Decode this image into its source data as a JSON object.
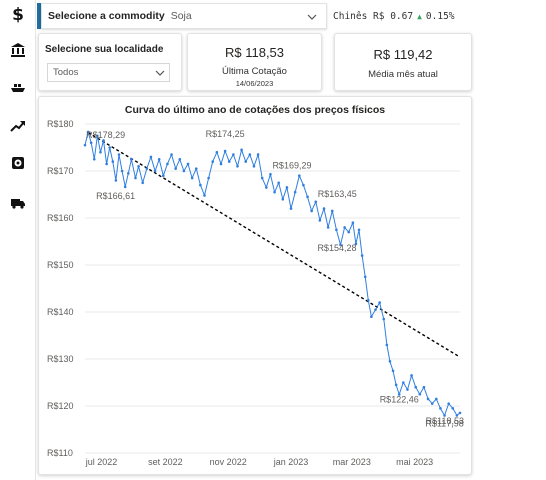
{
  "sidebar": {
    "items": [
      {
        "name": "dollar-icon",
        "label": "$"
      },
      {
        "name": "bank-icon"
      },
      {
        "name": "ship-icon"
      },
      {
        "name": "trend-up-icon"
      },
      {
        "name": "gauge-icon"
      },
      {
        "name": "truck-icon"
      }
    ]
  },
  "commodity": {
    "label": "Selecione a commodity",
    "value": "Soja"
  },
  "ticker": {
    "text": "Chinês R$ 0.67",
    "arrow": "▲",
    "change": "0.15%"
  },
  "location": {
    "label": "Selecione sua localidade",
    "value": "Todos"
  },
  "kpi_last": {
    "value": "R$ 118,53",
    "label": "Última Cotação",
    "date": "14/06/2023"
  },
  "kpi_month": {
    "value": "R$ 119,42",
    "label": "Média mês atual"
  },
  "colors": {
    "accent": "#1f6ea0",
    "series": "#2f7fe0",
    "trend": "#000000",
    "up": "#3aa55c"
  },
  "chart_data": {
    "type": "line",
    "title": "Curva do último ano de cotações dos preços físicos",
    "x_range": [
      "2022-06-15",
      "2023-06-14"
    ],
    "ylim": [
      110,
      180
    ],
    "yticks": [
      110,
      120,
      130,
      140,
      150,
      160,
      170,
      180
    ],
    "ytick_labels": [
      "R$110",
      "R$120",
      "R$130",
      "R$140",
      "R$150",
      "R$160",
      "R$170",
      "R$180"
    ],
    "xtick_labels": [
      "jul 2022",
      "set 2022",
      "nov 2022",
      "jan 2023",
      "mar 2023",
      "mai 2023"
    ],
    "xtick_dates": [
      "2022-07-01",
      "2022-09-01",
      "2022-11-01",
      "2023-01-01",
      "2023-03-01",
      "2023-05-01"
    ],
    "grid": true,
    "series": [
      {
        "points": [
          [
            "2022-06-15",
            175.5
          ],
          [
            "2022-06-18",
            178.29
          ],
          [
            "2022-06-21",
            176.0
          ],
          [
            "2022-06-24",
            172.5
          ],
          [
            "2022-06-27",
            177.5
          ],
          [
            "2022-06-30",
            174.0
          ],
          [
            "2022-07-03",
            176.5
          ],
          [
            "2022-07-06",
            171.5
          ],
          [
            "2022-07-09",
            175.0
          ],
          [
            "2022-07-12",
            172.0
          ],
          [
            "2022-07-15",
            168.0
          ],
          [
            "2022-07-18",
            173.5
          ],
          [
            "2022-07-21",
            170.0
          ],
          [
            "2022-07-24",
            166.61
          ],
          [
            "2022-07-27",
            169.5
          ],
          [
            "2022-07-30",
            172.5
          ],
          [
            "2022-08-03",
            168.5
          ],
          [
            "2022-08-06",
            171.0
          ],
          [
            "2022-08-10",
            167.5
          ],
          [
            "2022-08-14",
            170.5
          ],
          [
            "2022-08-18",
            173.0
          ],
          [
            "2022-08-22",
            170.0
          ],
          [
            "2022-08-26",
            172.5
          ],
          [
            "2022-08-30",
            169.0
          ],
          [
            "2022-09-03",
            171.5
          ],
          [
            "2022-09-07",
            173.5
          ],
          [
            "2022-09-11",
            170.5
          ],
          [
            "2022-09-15",
            172.5
          ],
          [
            "2022-09-19",
            170.0
          ],
          [
            "2022-09-23",
            171.5
          ],
          [
            "2022-09-27",
            168.5
          ],
          [
            "2022-10-01",
            170.5
          ],
          [
            "2022-10-05",
            167.0
          ],
          [
            "2022-10-09",
            164.8
          ],
          [
            "2022-10-13",
            168.5
          ],
          [
            "2022-10-17",
            172.0
          ],
          [
            "2022-10-21",
            174.0
          ],
          [
            "2022-10-25",
            171.5
          ],
          [
            "2022-10-29",
            174.25
          ],
          [
            "2022-11-02",
            172.0
          ],
          [
            "2022-11-06",
            173.5
          ],
          [
            "2022-11-10",
            171.0
          ],
          [
            "2022-11-14",
            174.5
          ],
          [
            "2022-11-18",
            172.0
          ],
          [
            "2022-11-22",
            173.5
          ],
          [
            "2022-11-26",
            171.0
          ],
          [
            "2022-11-30",
            173.5
          ],
          [
            "2022-12-04",
            168.5
          ],
          [
            "2022-12-08",
            166.5
          ],
          [
            "2022-12-12",
            169.29
          ],
          [
            "2022-12-16",
            165.5
          ],
          [
            "2022-12-20",
            167.5
          ],
          [
            "2022-12-24",
            164.0
          ],
          [
            "2022-12-28",
            166.5
          ],
          [
            "2023-01-01",
            162.0
          ],
          [
            "2023-01-05",
            165.5
          ],
          [
            "2023-01-09",
            169.0
          ],
          [
            "2023-01-13",
            167.0
          ],
          [
            "2023-01-17",
            164.5
          ],
          [
            "2023-01-21",
            161.5
          ],
          [
            "2023-01-25",
            163.45
          ],
          [
            "2023-01-29",
            159.5
          ],
          [
            "2023-02-02",
            162.0
          ],
          [
            "2023-02-06",
            158.0
          ],
          [
            "2023-02-10",
            161.5
          ],
          [
            "2023-02-14",
            157.5
          ],
          [
            "2023-02-18",
            154.28
          ],
          [
            "2023-02-22",
            158.0
          ],
          [
            "2023-02-26",
            157.0
          ],
          [
            "2023-03-02",
            159.0
          ],
          [
            "2023-03-05",
            154.5
          ],
          [
            "2023-03-08",
            157.5
          ],
          [
            "2023-03-11",
            152.0
          ],
          [
            "2023-03-14",
            147.5
          ],
          [
            "2023-03-17",
            142.5
          ],
          [
            "2023-03-20",
            139.0
          ],
          [
            "2023-03-24",
            140.5
          ],
          [
            "2023-03-28",
            142.0
          ],
          [
            "2023-04-01",
            138.5
          ],
          [
            "2023-04-04",
            133.0
          ],
          [
            "2023-04-07",
            129.5
          ],
          [
            "2023-04-10",
            127.5
          ],
          [
            "2023-04-13",
            124.5
          ],
          [
            "2023-04-16",
            122.46
          ],
          [
            "2023-04-20",
            125.0
          ],
          [
            "2023-04-24",
            123.5
          ],
          [
            "2023-04-28",
            126.5
          ],
          [
            "2023-05-02",
            124.0
          ],
          [
            "2023-05-06",
            122.5
          ],
          [
            "2023-05-10",
            124.0
          ],
          [
            "2023-05-14",
            121.5
          ],
          [
            "2023-05-18",
            120.5
          ],
          [
            "2023-05-22",
            121.5
          ],
          [
            "2023-05-26",
            119.5
          ],
          [
            "2023-05-30",
            117.98
          ],
          [
            "2023-06-03",
            120.5
          ],
          [
            "2023-06-07",
            119.5
          ],
          [
            "2023-06-11",
            118.0
          ],
          [
            "2023-06-14",
            118.53
          ]
        ]
      }
    ],
    "trendline": [
      [
        "2022-06-18",
        178.2
      ],
      [
        "2023-06-14",
        130.4
      ]
    ],
    "annotations": [
      {
        "date": "2022-06-18",
        "value": 178.29,
        "label": "R$178,29"
      },
      {
        "date": "2022-07-24",
        "value": 166.61,
        "label": "R$166,61"
      },
      {
        "date": "2022-10-29",
        "value": 174.25,
        "label": "R$174,25"
      },
      {
        "date": "2022-12-12",
        "value": 169.29,
        "label": "R$169,29"
      },
      {
        "date": "2023-01-25",
        "value": 163.45,
        "label": "R$163,45"
      },
      {
        "date": "2023-02-18",
        "value": 154.28,
        "label": "R$154,28"
      },
      {
        "date": "2023-04-16",
        "value": 122.46,
        "label": "R$122,46"
      },
      {
        "date": "2023-05-30",
        "value": 117.98,
        "label": "R$117,98"
      },
      {
        "date": "2023-06-14",
        "value": 118.53,
        "label": "R$118,53"
      }
    ]
  }
}
